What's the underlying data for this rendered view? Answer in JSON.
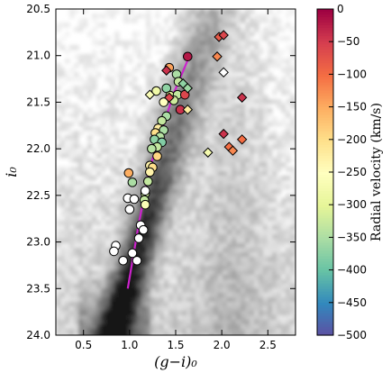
{
  "chart_data": {
    "type": "scatter",
    "title": "",
    "xlabel": "(g−i)₀",
    "ylabel": "i₀",
    "xlim": [
      0.2,
      2.8
    ],
    "ylim": [
      24.0,
      20.5
    ],
    "y_inverted": true,
    "xticks": [
      "0.5",
      "1.0",
      "1.5",
      "2.0",
      "2.5"
    ],
    "yticks": [
      "20.5",
      "21.0",
      "21.5",
      "22.0",
      "22.5",
      "23.0",
      "23.5",
      "24.0"
    ],
    "background": "grayscale Hess density of field stars",
    "fit_line": {
      "color": "#cc22cc",
      "points": [
        [
          0.98,
          23.5
        ],
        [
          1.1,
          22.8
        ],
        [
          1.22,
          22.2
        ],
        [
          1.35,
          21.8
        ],
        [
          1.48,
          21.4
        ],
        [
          1.63,
          21.05
        ]
      ]
    },
    "colorbar": {
      "label": "Radial velocity (km/s)",
      "range": [
        -500,
        0
      ],
      "ticks": [
        "0",
        "−50",
        "−100",
        "−150",
        "−200",
        "−250",
        "−300",
        "−350",
        "−400",
        "−450",
        "−500"
      ],
      "cmap": [
        "#5e4fa2",
        "#3288bd",
        "#66c2a5",
        "#abdda4",
        "#e6f598",
        "#ffffbf",
        "#fee08b",
        "#fdae61",
        "#f46d43",
        "#d53e4f",
        "#9e0142"
      ]
    },
    "series": [
      {
        "marker": "circle",
        "points": [
          [
            1.63,
            21.01,
            -20
          ],
          [
            1.43,
            21.13,
            -140
          ],
          [
            1.51,
            21.2,
            -350
          ],
          [
            1.4,
            21.35,
            -370
          ],
          [
            1.29,
            21.38,
            -280
          ],
          [
            1.53,
            21.28,
            -330
          ],
          [
            1.44,
            21.43,
            -300
          ],
          [
            1.52,
            21.42,
            -330
          ],
          [
            1.6,
            21.42,
            -60
          ],
          [
            1.48,
            21.48,
            -320
          ],
          [
            1.37,
            21.5,
            -250
          ],
          [
            1.55,
            21.58,
            -40
          ],
          [
            1.4,
            21.65,
            -350
          ],
          [
            1.35,
            21.7,
            -330
          ],
          [
            1.31,
            21.78,
            -220
          ],
          [
            1.37,
            21.8,
            -350
          ],
          [
            1.28,
            21.83,
            -200
          ],
          [
            1.33,
            21.87,
            -340
          ],
          [
            1.27,
            21.9,
            -370
          ],
          [
            1.35,
            21.93,
            -380
          ],
          [
            1.3,
            21.98,
            -330
          ],
          [
            1.24,
            22.0,
            -340
          ],
          [
            1.3,
            22.08,
            -190
          ],
          [
            1.22,
            22.18,
            -230
          ],
          [
            1.25,
            22.2,
            -200
          ],
          [
            1.22,
            22.25,
            -230
          ],
          [
            0.99,
            22.26,
            -150
          ],
          [
            1.03,
            22.36,
            -350
          ],
          [
            1.2,
            22.35,
            -330
          ],
          [
            1.17,
            22.48,
            -320
          ],
          [
            1.16,
            22.55,
            -330
          ],
          [
            1.17,
            22.6,
            -260
          ]
        ]
      },
      {
        "marker": "circle_open",
        "points": [
          [
            0.98,
            22.53
          ],
          [
            1.05,
            22.54
          ],
          [
            1.0,
            22.65
          ],
          [
            1.17,
            22.45
          ],
          [
            1.12,
            22.82
          ],
          [
            1.15,
            22.87
          ],
          [
            1.1,
            22.96
          ],
          [
            0.85,
            23.04
          ],
          [
            0.83,
            23.1
          ],
          [
            1.03,
            23.12
          ],
          [
            0.93,
            23.2
          ],
          [
            1.08,
            23.2
          ]
        ]
      },
      {
        "marker": "diamond",
        "points": [
          [
            1.97,
            20.8,
            -80
          ],
          [
            2.02,
            20.78,
            -60
          ],
          [
            1.95,
            21.01,
            -120
          ],
          [
            2.02,
            21.18,
            null
          ],
          [
            1.4,
            21.16,
            -40
          ],
          [
            1.58,
            21.3,
            -370
          ],
          [
            1.63,
            21.35,
            -360
          ],
          [
            1.22,
            21.42,
            -260
          ],
          [
            1.43,
            21.45,
            -60
          ],
          [
            2.22,
            21.45,
            -40
          ],
          [
            1.63,
            21.58,
            -220
          ],
          [
            2.02,
            21.84,
            -40
          ],
          [
            2.22,
            21.9,
            -100
          ],
          [
            2.08,
            21.98,
            -100
          ],
          [
            2.12,
            22.02,
            -120
          ],
          [
            1.85,
            22.04,
            -270
          ]
        ]
      }
    ]
  }
}
